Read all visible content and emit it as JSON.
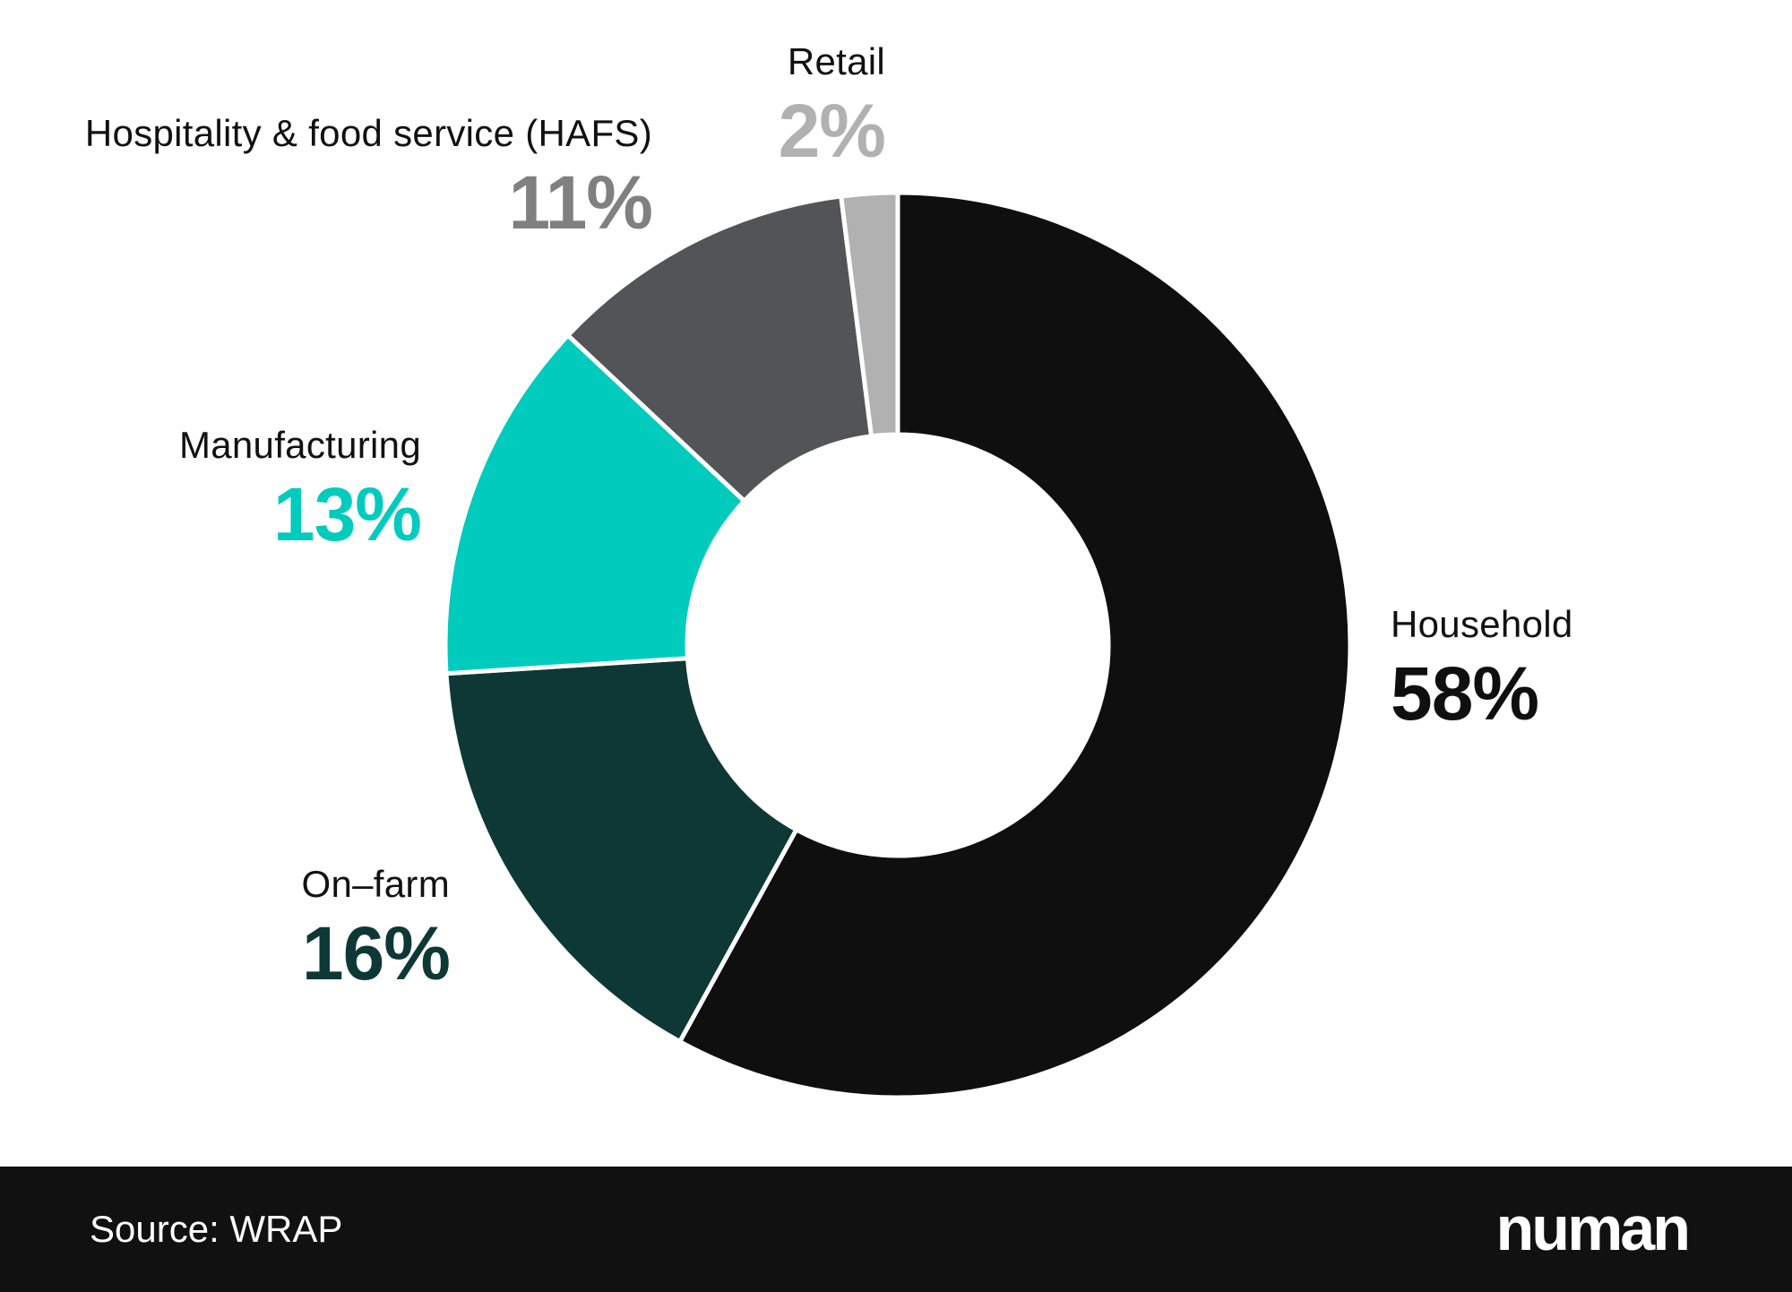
{
  "chart_data": {
    "type": "pie",
    "donut": true,
    "slices": [
      {
        "name": "Household",
        "value": 58,
        "label": "58%",
        "color": "#0f0f0f",
        "pct_color": "#0f0f0f"
      },
      {
        "name": "On-farm",
        "value": 16,
        "label": "16%",
        "color": "#0e3836",
        "pct_color": "#0e3836"
      },
      {
        "name": "Manufacturing",
        "value": 13,
        "label": "13%",
        "color": "#00cbbd",
        "pct_color": "#00cbbd"
      },
      {
        "name": "Hospitality & food service (HAFS)",
        "value": 11,
        "label": "11%",
        "color": "#525457",
        "pct_color": "#808080"
      },
      {
        "name": "Retail",
        "value": 2,
        "label": "2%",
        "color": "#b1b1b1",
        "pct_color": "#b1b1b1"
      }
    ],
    "legend": "none",
    "start": "top",
    "direction": "clockwise"
  },
  "labels": {
    "household": {
      "name": "Household",
      "pct": "58%"
    },
    "onfarm": {
      "name": "On–farm",
      "pct": "16%"
    },
    "manufacturing": {
      "name": "Manufacturing",
      "pct": "13%"
    },
    "hafs": {
      "name": "Hospitality & food service (HAFS)",
      "pct": "11%"
    },
    "retail": {
      "name": "Retail",
      "pct": "2%"
    }
  },
  "footer": {
    "source": "Source: WRAP",
    "brand": "numan"
  }
}
